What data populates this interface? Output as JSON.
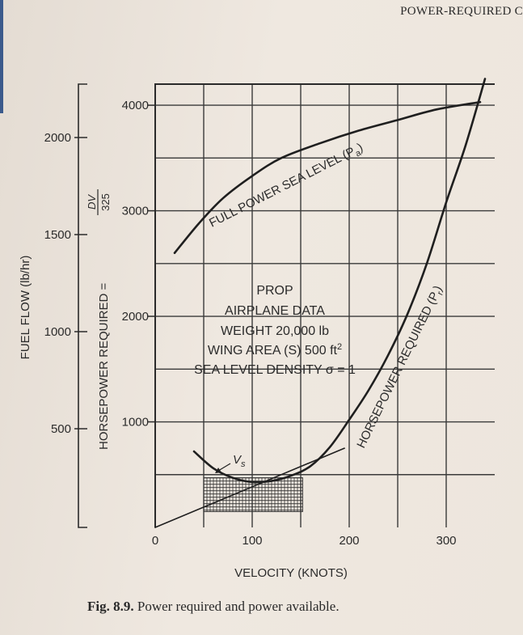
{
  "running_head": "POWER-REQUIRED C",
  "caption": {
    "fig_label": "Fig. 8.9.",
    "text": "Power required and power available."
  },
  "chart_data": {
    "type": "line",
    "xlabel": "VELOCITY (KNOTS)",
    "xlim": [
      0,
      350
    ],
    "x_ticks": [
      "0",
      "100",
      "200",
      "300"
    ],
    "ylim": [
      0,
      4200
    ],
    "y_ticks": [
      "1000",
      "2000",
      "3000",
      "4000"
    ],
    "ylabel": "HORSEPOWER REQUIRED = DV/325",
    "ylabel_main": "HORSEPOWER REQUIRED =",
    "ylabel_num": "DV",
    "ylabel_den": "325",
    "y2label": "FUEL FLOW (lb/hr)",
    "y2_ticks": [
      "500",
      "1000",
      "1500",
      "2000"
    ],
    "grid": true,
    "series": [
      {
        "name": "FULL POWER SEA LEVEL (Pa)",
        "label_main": "FULL POWER SEA LEVEL (P",
        "label_sub": "a",
        "label_close": ")",
        "points": [
          [
            20,
            2600
          ],
          [
            45,
            2880
          ],
          [
            70,
            3120
          ],
          [
            100,
            3330
          ],
          [
            130,
            3500
          ],
          [
            170,
            3640
          ],
          [
            210,
            3760
          ],
          [
            250,
            3860
          ],
          [
            290,
            3960
          ],
          [
            335,
            4030
          ]
        ]
      },
      {
        "name": "HORSEPOWER REQUIRED (Pr)",
        "label_main": "HORSEPOWER REQUIRED (P",
        "label_sub": "r",
        "label_close": ")",
        "points": [
          [
            40,
            720
          ],
          [
            60,
            560
          ],
          [
            80,
            470
          ],
          [
            100,
            430
          ],
          [
            120,
            440
          ],
          [
            140,
            490
          ],
          [
            160,
            580
          ],
          [
            180,
            760
          ],
          [
            200,
            1020
          ],
          [
            220,
            1300
          ],
          [
            240,
            1630
          ],
          [
            260,
            2020
          ],
          [
            280,
            2500
          ],
          [
            300,
            3080
          ],
          [
            320,
            3620
          ],
          [
            340,
            4250
          ]
        ]
      },
      {
        "name": "tangent",
        "points": [
          [
            0,
            0
          ],
          [
            195,
            750
          ]
        ]
      }
    ],
    "vs_label": "V",
    "vs_sub": "s",
    "annotation_lines": [
      "PROP",
      "AIRPLANE DATA",
      "WEIGHT 20,000 lb",
      "WING AREA (S) 500 ft2",
      "SEA LEVEL DENSITY σ = 1"
    ]
  }
}
